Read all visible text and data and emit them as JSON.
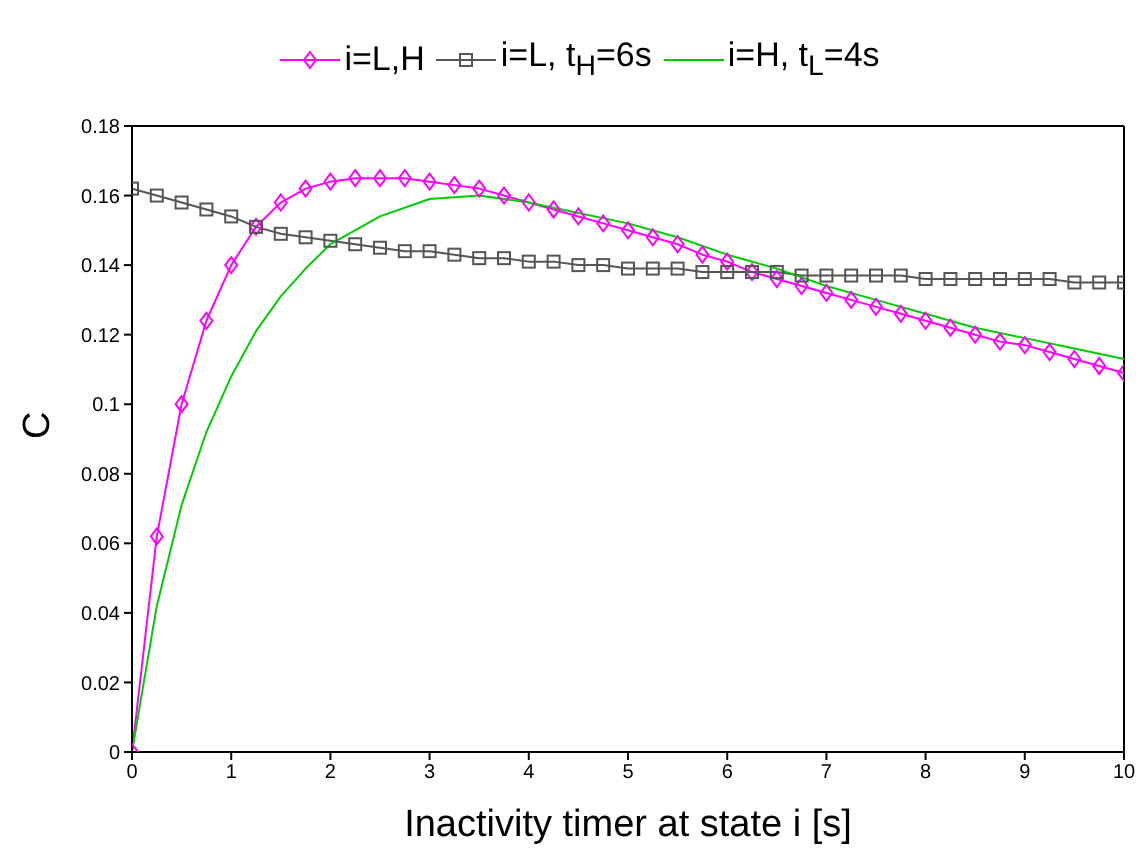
{
  "chart_data": {
    "type": "line",
    "xlabel": "Inactivity timer at state i [s]",
    "ylabel": "C",
    "xlim": [
      0,
      10
    ],
    "xticks": [
      0,
      1,
      2,
      3,
      4,
      5,
      6,
      7,
      8,
      9,
      10
    ],
    "ylim": [
      0,
      0.18
    ],
    "yticks": [
      0,
      0.02,
      0.04,
      0.06,
      0.08,
      0.1,
      0.12,
      0.14,
      0.16,
      0.18
    ],
    "grid": false,
    "legend": "top",
    "series": [
      {
        "name": "i=L,H",
        "color": "#ff00ff",
        "marker": "diamond",
        "x": [
          0,
          0.25,
          0.5,
          0.75,
          1,
          1.25,
          1.5,
          1.75,
          2,
          2.25,
          2.5,
          2.75,
          3,
          3.25,
          3.5,
          3.75,
          4,
          4.25,
          4.5,
          4.75,
          5,
          5.25,
          5.5,
          5.75,
          6,
          6.25,
          6.5,
          6.75,
          7,
          7.25,
          7.5,
          7.75,
          8,
          8.25,
          8.5,
          8.75,
          9,
          9.25,
          9.5,
          9.75,
          10
        ],
        "values": [
          0,
          0.062,
          0.1,
          0.124,
          0.14,
          0.151,
          0.158,
          0.162,
          0.164,
          0.165,
          0.165,
          0.165,
          0.164,
          0.163,
          0.162,
          0.16,
          0.158,
          0.156,
          0.154,
          0.152,
          0.15,
          0.148,
          0.146,
          0.143,
          0.141,
          0.138,
          0.136,
          0.134,
          0.132,
          0.13,
          0.128,
          0.126,
          0.124,
          0.122,
          0.12,
          0.118,
          0.117,
          0.115,
          0.113,
          0.111,
          0.109
        ]
      },
      {
        "name": "i=L, t$_{H}$=6s",
        "color": "#555555",
        "marker": "square",
        "x": [
          0,
          0.25,
          0.5,
          0.75,
          1,
          1.25,
          1.5,
          1.75,
          2,
          2.25,
          2.5,
          2.75,
          3,
          3.25,
          3.5,
          3.75,
          4,
          4.25,
          4.5,
          4.75,
          5,
          5.25,
          5.5,
          5.75,
          6,
          6.25,
          6.5,
          6.75,
          7,
          7.25,
          7.5,
          7.75,
          8,
          8.25,
          8.5,
          8.75,
          9,
          9.25,
          9.5,
          9.75,
          10
        ],
        "values": [
          0.162,
          0.16,
          0.158,
          0.156,
          0.154,
          0.151,
          0.149,
          0.148,
          0.147,
          0.146,
          0.145,
          0.144,
          0.144,
          0.143,
          0.142,
          0.142,
          0.141,
          0.141,
          0.14,
          0.14,
          0.139,
          0.139,
          0.139,
          0.138,
          0.138,
          0.138,
          0.138,
          0.137,
          0.137,
          0.137,
          0.137,
          0.137,
          0.136,
          0.136,
          0.136,
          0.136,
          0.136,
          0.136,
          0.135,
          0.135,
          0.135
        ]
      },
      {
        "name": "i=H, t$_{L}$=4s",
        "color": "#00cc00",
        "marker": "none",
        "x": [
          0,
          0.25,
          0.5,
          0.75,
          1,
          1.25,
          1.5,
          1.75,
          2,
          2.5,
          3,
          3.5,
          4,
          4.5,
          5,
          5.5,
          6,
          6.5,
          7,
          7.5,
          8,
          8.5,
          9,
          9.5,
          10
        ],
        "values": [
          0,
          0.042,
          0.071,
          0.092,
          0.108,
          0.121,
          0.131,
          0.139,
          0.146,
          0.154,
          0.159,
          0.16,
          0.158,
          0.155,
          0.152,
          0.148,
          0.143,
          0.139,
          0.134,
          0.13,
          0.126,
          0.122,
          0.119,
          0.116,
          0.113
        ]
      }
    ]
  }
}
